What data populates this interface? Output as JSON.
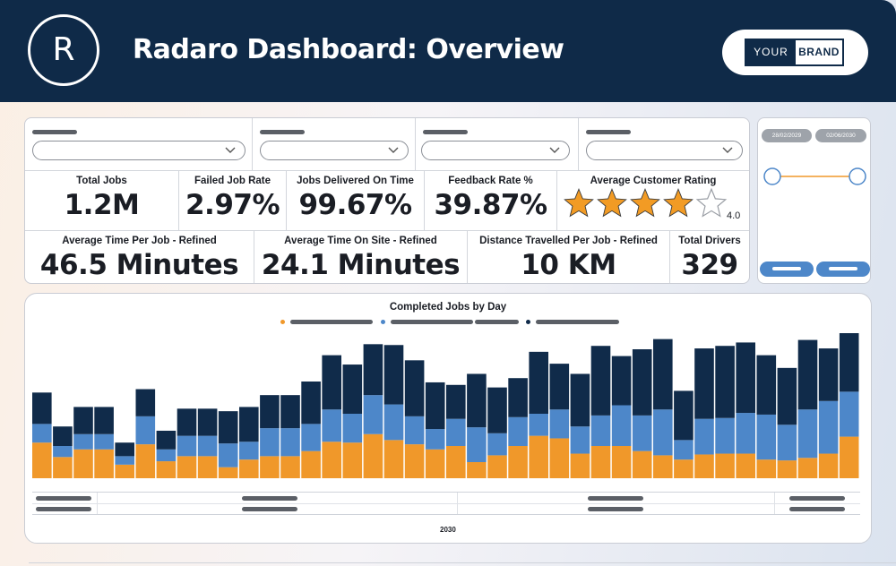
{
  "header": {
    "logo_letter": "R",
    "title": "Radaro Dashboard: Overview",
    "brand_your": "YOUR",
    "brand_brand": "BRAND"
  },
  "colors": {
    "header_bg": "#0f2a48",
    "orange": "#f0982a",
    "blue": "#4d87c9",
    "navy": "#102b4a",
    "star": "#f29b24"
  },
  "filters": [
    {
      "value": ""
    },
    {
      "value": ""
    },
    {
      "value": ""
    },
    {
      "value": ""
    }
  ],
  "kpis_row1": [
    {
      "label": "Total Jobs",
      "value": "1.2M"
    },
    {
      "label": "Failed Job Rate",
      "value": "2.97%"
    },
    {
      "label": "Jobs Delivered On Time",
      "value": "99.67%"
    },
    {
      "label": "Feedback Rate %",
      "value": "39.87%"
    }
  ],
  "rating": {
    "label": "Average Customer Rating",
    "value": "4.0",
    "stars_filled": 4,
    "stars_total": 5
  },
  "kpis_row2": [
    {
      "label": "Average Time Per Job - Refined",
      "value": "46.5 Minutes"
    },
    {
      "label": "Average Time On Site - Refined",
      "value": "24.1 Minutes"
    },
    {
      "label": "Distance Travelled Per Job - Refined",
      "value": "10 KM"
    },
    {
      "label": "Total Drivers",
      "value": "329"
    }
  ],
  "date_slider": {
    "start": "28/02/2029",
    "end": "02/06/2030"
  },
  "chart_data": {
    "type": "bar",
    "title": "Completed Jobs by Day",
    "stacked": true,
    "xlabel": "2030",
    "x_tick_labels_visible": false,
    "categories": [
      "1",
      "2",
      "3",
      "4",
      "5",
      "6",
      "7",
      "8",
      "9",
      "10",
      "11",
      "12",
      "13",
      "14",
      "15",
      "16",
      "17",
      "18",
      "19",
      "20",
      "21",
      "22",
      "23",
      "24",
      "25",
      "26",
      "27",
      "28",
      "29",
      "30",
      "31",
      "32",
      "33",
      "34",
      "35",
      "36",
      "37",
      "38",
      "39",
      "40"
    ],
    "series": [
      {
        "color": "#f0982a",
        "values": [
          42,
          25,
          34,
          34,
          16,
          40,
          20,
          26,
          26,
          13,
          22,
          26,
          26,
          32,
          43,
          42,
          52,
          45,
          40,
          34,
          38,
          19,
          27,
          38,
          50,
          47,
          29,
          38,
          38,
          32,
          27,
          22,
          28,
          29,
          29,
          22,
          21,
          24,
          29,
          49
        ]
      },
      {
        "color": "#4d87c9",
        "values": [
          22,
          13,
          18,
          18,
          10,
          33,
          14,
          24,
          24,
          28,
          21,
          33,
          33,
          32,
          38,
          34,
          46,
          42,
          33,
          24,
          32,
          41,
          26,
          34,
          26,
          34,
          32,
          36,
          48,
          42,
          54,
          23,
          42,
          42,
          48,
          53,
          42,
          57,
          62,
          53
        ]
      },
      {
        "color": "#102b4a",
        "values": [
          37,
          23,
          32,
          32,
          16,
          32,
          22,
          32,
          32,
          38,
          41,
          39,
          39,
          50,
          64,
          58,
          60,
          70,
          66,
          55,
          40,
          63,
          54,
          46,
          73,
          54,
          62,
          82,
          58,
          78,
          83,
          58,
          83,
          85,
          83,
          70,
          67,
          82,
          62,
          69
        ]
      }
    ]
  }
}
